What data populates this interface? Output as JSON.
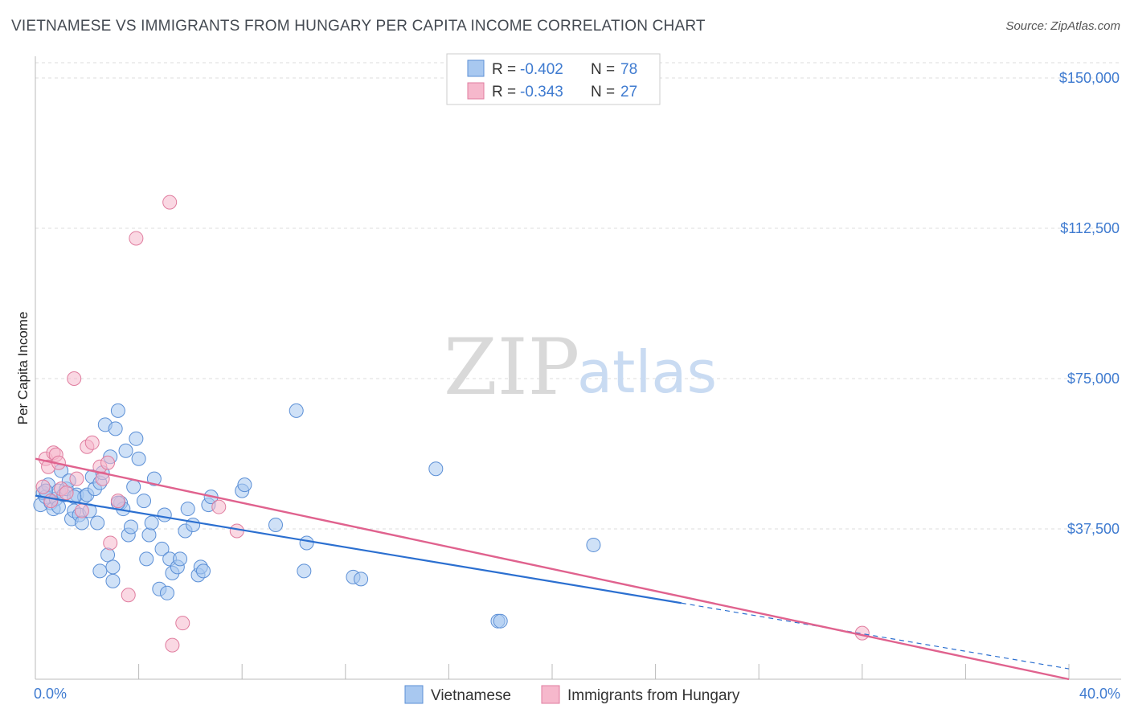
{
  "title": "VIETNAMESE VS IMMIGRANTS FROM HUNGARY PER CAPITA INCOME CORRELATION CHART",
  "source": "Source: ZipAtlas.com",
  "watermark": {
    "zip": "ZIP",
    "atlas": "atlas"
  },
  "colors": {
    "vietnamese_fill": "#a8c8f0",
    "vietnamese_stroke": "#5b8fd6",
    "vietnamese_line": "#2b6fd0",
    "hungary_fill": "#f6b8cc",
    "hungary_stroke": "#e07d9f",
    "hungary_line": "#e0628e",
    "tick_text": "#3f7bd0",
    "grid": "#dddddd"
  },
  "legend": {
    "rows": [
      {
        "r_label": "R = ",
        "r_value": "-0.402",
        "n_label": "N = ",
        "n_value": "78"
      },
      {
        "r_label": "R = ",
        "r_value": "-0.343",
        "n_label": "N = ",
        "n_value": "27"
      }
    ]
  },
  "chart_data": {
    "type": "scatter",
    "title": "VIETNAMESE VS IMMIGRANTS FROM HUNGARY PER CAPITA INCOME CORRELATION CHART",
    "xlabel": "",
    "ylabel": "Per Capita Income",
    "xlim": [
      0,
      40
    ],
    "ylim": [
      0,
      155000
    ],
    "x_tick_labels": [
      "0.0%",
      "40.0%"
    ],
    "y_ticks": [
      37500,
      75000,
      112500,
      150000
    ],
    "y_tick_labels": [
      "$37,500",
      "$75,000",
      "$112,500",
      "$150,000"
    ],
    "series": [
      {
        "name": "Vietnamese",
        "points": [
          [
            0.2,
            43500
          ],
          [
            0.3,
            46500
          ],
          [
            0.4,
            45500
          ],
          [
            0.5,
            48500
          ],
          [
            0.6,
            44000
          ],
          [
            0.7,
            42500
          ],
          [
            0.8,
            45000
          ],
          [
            0.9,
            47000
          ],
          [
            0.9,
            43000
          ],
          [
            1.0,
            52000
          ],
          [
            1.1,
            46000
          ],
          [
            1.2,
            47500
          ],
          [
            1.3,
            49500
          ],
          [
            1.4,
            40000
          ],
          [
            1.5,
            42000
          ],
          [
            1.6,
            46000
          ],
          [
            1.7,
            41000
          ],
          [
            1.8,
            39000
          ],
          [
            1.9,
            45500
          ],
          [
            2.0,
            46000
          ],
          [
            2.1,
            42000
          ],
          [
            2.2,
            50500
          ],
          [
            2.3,
            47500
          ],
          [
            2.4,
            39000
          ],
          [
            2.5,
            27000
          ],
          [
            2.5,
            49000
          ],
          [
            2.6,
            51500
          ],
          [
            2.7,
            63500
          ],
          [
            2.8,
            31000
          ],
          [
            2.9,
            55500
          ],
          [
            3.0,
            28000
          ],
          [
            3.0,
            24500
          ],
          [
            3.1,
            62500
          ],
          [
            3.2,
            67000
          ],
          [
            3.3,
            44000
          ],
          [
            3.4,
            42500
          ],
          [
            3.5,
            57000
          ],
          [
            3.6,
            36000
          ],
          [
            3.7,
            38000
          ],
          [
            3.8,
            48000
          ],
          [
            3.9,
            60000
          ],
          [
            4.0,
            55000
          ],
          [
            4.2,
            44500
          ],
          [
            4.3,
            30000
          ],
          [
            4.4,
            36000
          ],
          [
            4.5,
            39000
          ],
          [
            4.6,
            50000
          ],
          [
            4.8,
            22500
          ],
          [
            4.9,
            32500
          ],
          [
            5.0,
            41000
          ],
          [
            5.1,
            21500
          ],
          [
            5.2,
            30000
          ],
          [
            5.3,
            26500
          ],
          [
            5.5,
            28000
          ],
          [
            5.6,
            30000
          ],
          [
            5.8,
            37000
          ],
          [
            5.9,
            42500
          ],
          [
            6.1,
            38500
          ],
          [
            6.3,
            26000
          ],
          [
            6.4,
            28000
          ],
          [
            6.5,
            27000
          ],
          [
            6.7,
            43500
          ],
          [
            6.8,
            45500
          ],
          [
            8.0,
            47000
          ],
          [
            8.1,
            48500
          ],
          [
            9.3,
            38500
          ],
          [
            10.1,
            67000
          ],
          [
            10.4,
            27000
          ],
          [
            10.5,
            34000
          ],
          [
            12.3,
            25500
          ],
          [
            12.6,
            25000
          ],
          [
            15.5,
            52500
          ],
          [
            17.9,
            14500
          ],
          [
            18.0,
            14500
          ],
          [
            21.6,
            33500
          ],
          [
            3.2,
            44000
          ],
          [
            1.5,
            45500
          ],
          [
            0.4,
            47000
          ]
        ]
      },
      {
        "name": "Immigrants from Hungary",
        "points": [
          [
            0.3,
            48000
          ],
          [
            0.4,
            55000
          ],
          [
            0.5,
            53000
          ],
          [
            0.6,
            44500
          ],
          [
            0.7,
            56500
          ],
          [
            0.8,
            56000
          ],
          [
            0.9,
            54000
          ],
          [
            1.0,
            47500
          ],
          [
            1.2,
            46500
          ],
          [
            1.5,
            75000
          ],
          [
            1.6,
            50000
          ],
          [
            1.8,
            42000
          ],
          [
            2.0,
            58000
          ],
          [
            2.2,
            59000
          ],
          [
            2.5,
            53000
          ],
          [
            2.6,
            50000
          ],
          [
            2.8,
            54000
          ],
          [
            2.9,
            34000
          ],
          [
            3.2,
            44500
          ],
          [
            3.6,
            21000
          ],
          [
            3.9,
            110000
          ],
          [
            5.2,
            119000
          ],
          [
            5.3,
            8500
          ],
          [
            5.7,
            14000
          ],
          [
            7.1,
            43000
          ],
          [
            7.8,
            37000
          ],
          [
            32.0,
            11500
          ]
        ]
      }
    ],
    "trend_lines": [
      {
        "series": "Vietnamese",
        "x0": 0,
        "y0": 45800,
        "x1": 25,
        "y1": 19000,
        "dashed_to_x": 40,
        "dashed_to_y": 2600
      },
      {
        "series": "Immigrants from Hungary",
        "x0": 0,
        "y0": 55000,
        "x1": 40,
        "y1": 0
      }
    ]
  },
  "bottom_legend": {
    "items": [
      "Vietnamese",
      "Immigrants from Hungary"
    ]
  }
}
